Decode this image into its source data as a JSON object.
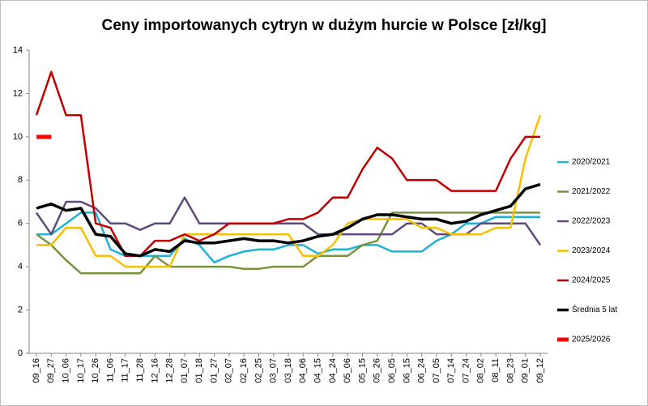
{
  "chart_data": {
    "type": "line",
    "title": "Ceny importowanych cytryn w dużym hurcie w Polsce [zł/kg]",
    "categories": [
      "09_16",
      "09_27",
      "10_06",
      "10_17",
      "10_26",
      "11_06",
      "11_17",
      "11_28",
      "12_16",
      "12_28",
      "01_07",
      "01_18",
      "01_27",
      "02_07",
      "02_16",
      "02_25",
      "03_07",
      "03_18",
      "04_06",
      "04_15",
      "04_24",
      "05_06",
      "05_15",
      "05_26",
      "06_05",
      "06_15",
      "06_24",
      "07_05",
      "07_14",
      "07_24",
      "08_02",
      "08_11",
      "08_23",
      "09_01",
      "09_12"
    ],
    "ylim": [
      0,
      14
    ],
    "yticks": [
      0,
      2,
      4,
      6,
      8,
      10,
      12,
      14
    ],
    "grid": false,
    "series": [
      {
        "name": "2020/2021",
        "color": "#1fb1d8",
        "width": 2.5,
        "values": [
          5.5,
          5.5,
          6.0,
          6.5,
          6.5,
          4.8,
          4.5,
          4.5,
          4.5,
          4.5,
          5.3,
          5.0,
          4.2,
          4.5,
          4.7,
          4.8,
          4.8,
          5.0,
          5.0,
          4.6,
          4.8,
          4.8,
          5.0,
          5.0,
          4.7,
          4.7,
          4.7,
          5.2,
          5.5,
          6.0,
          6.0,
          6.3,
          6.3,
          6.3,
          6.3
        ]
      },
      {
        "name": "2021/2022",
        "color": "#77933c",
        "width": 2.5,
        "values": [
          5.5,
          5.0,
          4.3,
          3.7,
          3.7,
          3.7,
          3.7,
          3.7,
          4.5,
          4.0,
          4.0,
          4.0,
          4.0,
          4.0,
          3.9,
          3.9,
          4.0,
          4.0,
          4.0,
          4.5,
          4.5,
          4.5,
          5.0,
          5.2,
          6.5,
          6.5,
          6.5,
          6.5,
          6.5,
          6.5,
          6.5,
          6.5,
          6.5,
          6.5,
          6.5
        ]
      },
      {
        "name": "2022/2023",
        "color": "#604a7b",
        "width": 2.5,
        "values": [
          6.5,
          5.5,
          7.0,
          7.0,
          6.7,
          6.0,
          6.0,
          5.7,
          6.0,
          6.0,
          7.2,
          6.0,
          6.0,
          6.0,
          6.0,
          6.0,
          6.0,
          6.0,
          6.0,
          5.5,
          5.5,
          5.5,
          5.5,
          5.5,
          5.5,
          6.0,
          6.0,
          5.5,
          5.5,
          5.5,
          6.0,
          6.0,
          6.0,
          6.0,
          5.0
        ]
      },
      {
        "name": "2023/2024",
        "color": "#f6c000",
        "width": 2.5,
        "values": [
          5.0,
          5.0,
          5.8,
          5.8,
          4.5,
          4.5,
          4.0,
          4.0,
          4.0,
          4.0,
          5.5,
          5.5,
          5.5,
          5.5,
          5.5,
          5.5,
          5.5,
          5.5,
          4.5,
          4.5,
          5.0,
          6.0,
          6.2,
          6.2,
          6.2,
          6.2,
          5.8,
          5.8,
          5.5,
          5.5,
          5.5,
          5.8,
          5.8,
          9.0,
          11.0
        ]
      },
      {
        "name": "2024/2025",
        "color": "#c00000",
        "width": 2.5,
        "values": [
          11.0,
          13.0,
          11.0,
          11.0,
          6.0,
          5.8,
          4.5,
          4.5,
          5.2,
          5.2,
          5.5,
          5.2,
          5.5,
          6.0,
          6.0,
          6.0,
          6.0,
          6.2,
          6.2,
          6.5,
          7.2,
          7.2,
          8.5,
          9.5,
          9.0,
          8.0,
          8.0,
          8.0,
          7.5,
          7.5,
          7.5,
          7.5,
          9.0,
          10.0,
          10.0
        ]
      },
      {
        "name": "Średnia 5 lat",
        "color": "#000000",
        "width": 3.5,
        "values": [
          6.7,
          6.9,
          6.6,
          6.7,
          5.5,
          5.4,
          4.6,
          4.5,
          4.8,
          4.7,
          5.2,
          5.1,
          5.1,
          5.2,
          5.3,
          5.2,
          5.2,
          5.1,
          5.2,
          5.4,
          5.5,
          5.8,
          6.2,
          6.4,
          6.4,
          6.3,
          6.2,
          6.2,
          6.0,
          6.1,
          6.4,
          6.6,
          6.8,
          7.6,
          7.8
        ]
      },
      {
        "name": "2025/2026",
        "color": "#ff0000",
        "width": 5,
        "values": [
          10.0,
          10.0,
          null,
          null,
          null,
          null,
          null,
          null,
          null,
          null,
          null,
          null,
          null,
          null,
          null,
          null,
          null,
          null,
          null,
          null,
          null,
          null,
          null,
          null,
          null,
          null,
          null,
          null,
          null,
          null,
          null,
          null,
          null,
          null,
          null
        ]
      }
    ]
  }
}
